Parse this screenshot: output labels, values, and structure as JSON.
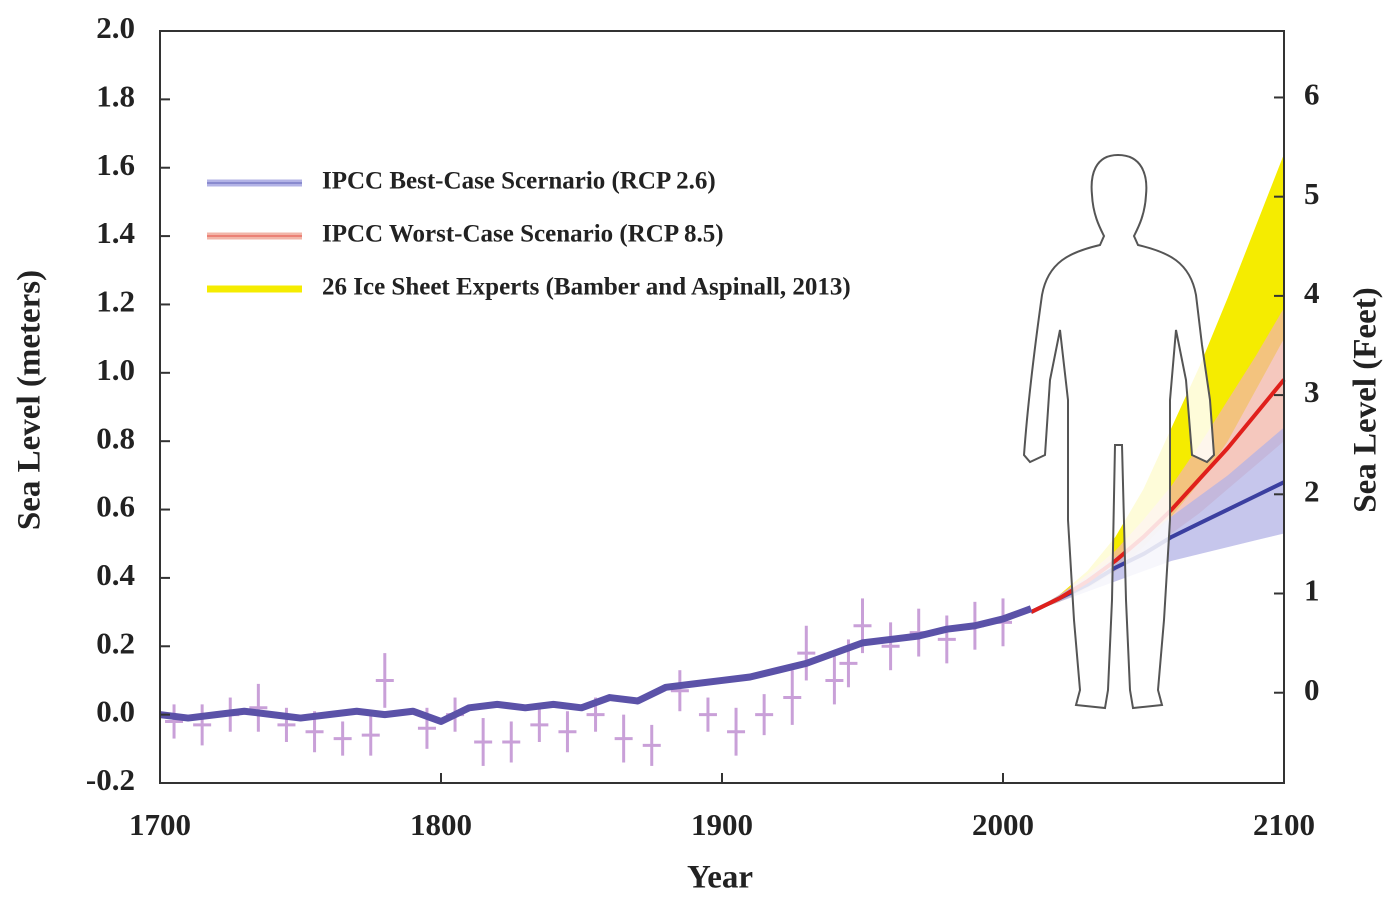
{
  "chart_data": {
    "type": "line",
    "x_label": "Year",
    "y_label": "Sea Level (meters)",
    "y2_label": "Sea Level (Feet)",
    "xlim": [
      1700,
      2100
    ],
    "xticks": [
      1700,
      1800,
      1900,
      2000,
      2100
    ],
    "ylim": [
      -0.2,
      2.0
    ],
    "yticks": [
      -0.2,
      {
        "value": 0,
        "label": "0.0"
      },
      0.2,
      0.4,
      0.6,
      0.8,
      {
        "value": 1,
        "label": "1.0"
      },
      1.2,
      1.4,
      1.6,
      1.8,
      {
        "value": 2,
        "label": "2.0"
      }
    ],
    "y2lim": [
      -0.91,
      6.67
    ],
    "y2ticks": [
      0,
      1,
      2,
      3,
      4,
      5,
      6
    ],
    "legend": "upper left",
    "series": [
      {
        "name": "IPCC Best-Case Scernario (RCP 2.6)",
        "color": "#3b3fa0",
        "band_color": "#b3b3e6",
        "x": [
          2010,
          2020,
          2030,
          2040,
          2050,
          2060,
          2070,
          2080,
          2090,
          2100
        ],
        "values": [
          0.3,
          0.34,
          0.38,
          0.43,
          0.47,
          0.52,
          0.56,
          0.6,
          0.64,
          0.68
        ],
        "lower": [
          0.3,
          0.33,
          0.36,
          0.39,
          0.42,
          0.45,
          0.47,
          0.49,
          0.51,
          0.53
        ],
        "upper": [
          0.3,
          0.35,
          0.4,
          0.46,
          0.52,
          0.58,
          0.64,
          0.7,
          0.77,
          0.84
        ]
      },
      {
        "name": "IPCC Worst-Case Scenario (RCP 8.5)",
        "color": "#e0201b",
        "band_color": "#f2b5a8",
        "x": [
          2010,
          2020,
          2030,
          2040,
          2050,
          2060,
          2070,
          2080,
          2090,
          2100
        ],
        "values": [
          0.3,
          0.34,
          0.39,
          0.45,
          0.52,
          0.6,
          0.69,
          0.78,
          0.88,
          0.98
        ],
        "lower": [
          0.3,
          0.33,
          0.37,
          0.42,
          0.47,
          0.53,
          0.59,
          0.66,
          0.73,
          0.8
        ],
        "upper": [
          0.3,
          0.35,
          0.41,
          0.48,
          0.57,
          0.67,
          0.79,
          0.92,
          1.05,
          1.19
        ]
      },
      {
        "name": "26 Ice Sheet Experts (Bamber and Aspinall, 2013)",
        "band_color": "#f5ec00",
        "x": [
          2010,
          2020,
          2030,
          2040,
          2050,
          2060,
          2070,
          2080,
          2090,
          2100
        ],
        "lower": [
          0.3,
          0.33,
          0.37,
          0.42,
          0.49,
          0.58,
          0.68,
          0.8,
          0.95,
          1.1
        ],
        "upper": [
          0.3,
          0.35,
          0.42,
          0.52,
          0.66,
          0.84,
          1.02,
          1.22,
          1.43,
          1.64
        ]
      },
      {
        "color": "#c9a0d8",
        "x": [
          1705,
          1715,
          1725,
          1735,
          1745,
          1755,
          1765,
          1775,
          1780,
          1795,
          1805,
          1815,
          1825,
          1835,
          1845,
          1855,
          1865,
          1875,
          1885,
          1895,
          1905,
          1915,
          1925,
          1930,
          1940,
          1945,
          1950,
          1960,
          1970,
          1980,
          1990,
          2000
        ],
        "values": [
          -0.02,
          -0.03,
          0.0,
          0.02,
          -0.03,
          -0.05,
          -0.07,
          -0.06,
          0.1,
          -0.04,
          0.0,
          -0.08,
          -0.08,
          -0.03,
          -0.05,
          0.0,
          -0.07,
          -0.09,
          0.07,
          0.0,
          -0.05,
          0.0,
          0.05,
          0.18,
          0.1,
          0.15,
          0.26,
          0.2,
          0.24,
          0.22,
          0.26,
          0.27
        ],
        "errors": [
          0.05,
          0.06,
          0.05,
          0.07,
          0.05,
          0.06,
          0.05,
          0.06,
          0.08,
          0.06,
          0.05,
          0.07,
          0.06,
          0.05,
          0.06,
          0.05,
          0.07,
          0.06,
          0.06,
          0.05,
          0.07,
          0.06,
          0.08,
          0.08,
          0.07,
          0.07,
          0.08,
          0.07,
          0.07,
          0.07,
          0.07,
          0.07
        ]
      },
      {
        "color": "#5b52a8",
        "x": [
          1700,
          1710,
          1720,
          1730,
          1740,
          1750,
          1760,
          1770,
          1780,
          1790,
          1800,
          1810,
          1820,
          1830,
          1840,
          1850,
          1860,
          1870,
          1880,
          1890,
          1900,
          1910,
          1920,
          1930,
          1940,
          1950,
          1960,
          1970,
          1980,
          1990,
          2000,
          2010
        ],
        "values": [
          0.0,
          -0.01,
          0.0,
          0.01,
          0.0,
          -0.01,
          0.0,
          0.01,
          0.0,
          0.01,
          -0.02,
          0.02,
          0.03,
          0.02,
          0.03,
          0.02,
          0.05,
          0.04,
          0.08,
          0.09,
          0.1,
          0.11,
          0.13,
          0.15,
          0.18,
          0.21,
          0.22,
          0.23,
          0.25,
          0.26,
          0.28,
          0.31
        ]
      }
    ]
  }
}
